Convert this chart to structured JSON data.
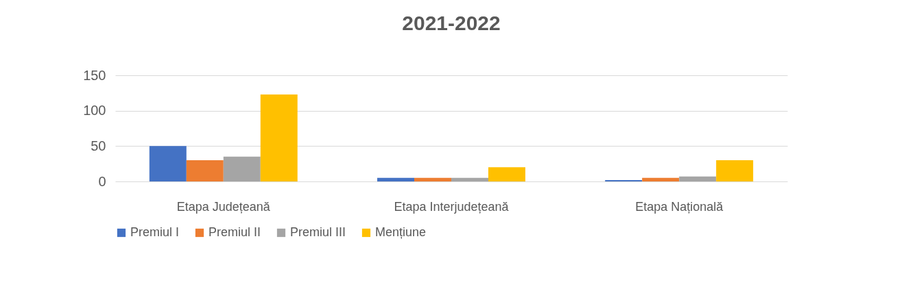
{
  "chart_data": {
    "type": "bar",
    "title": "2021-2022",
    "categories": [
      "Etapa Județeană",
      "Etapa Interjudețeană",
      "Etapa Națională"
    ],
    "series": [
      {
        "name": "Premiul I",
        "color": "#4472c4",
        "values": [
          50,
          5,
          2
        ]
      },
      {
        "name": "Premiul II",
        "color": "#ed7d31",
        "values": [
          30,
          5,
          5
        ]
      },
      {
        "name": "Premiul III",
        "color": "#a5a5a5",
        "values": [
          35,
          5,
          7
        ]
      },
      {
        "name": "Mențiune",
        "color": "#ffc000",
        "values": [
          123,
          20,
          30
        ]
      }
    ],
    "ylim": [
      0,
      150
    ],
    "yticks": [
      0,
      50,
      100,
      150
    ],
    "grid": "y",
    "legend": "bottom"
  }
}
